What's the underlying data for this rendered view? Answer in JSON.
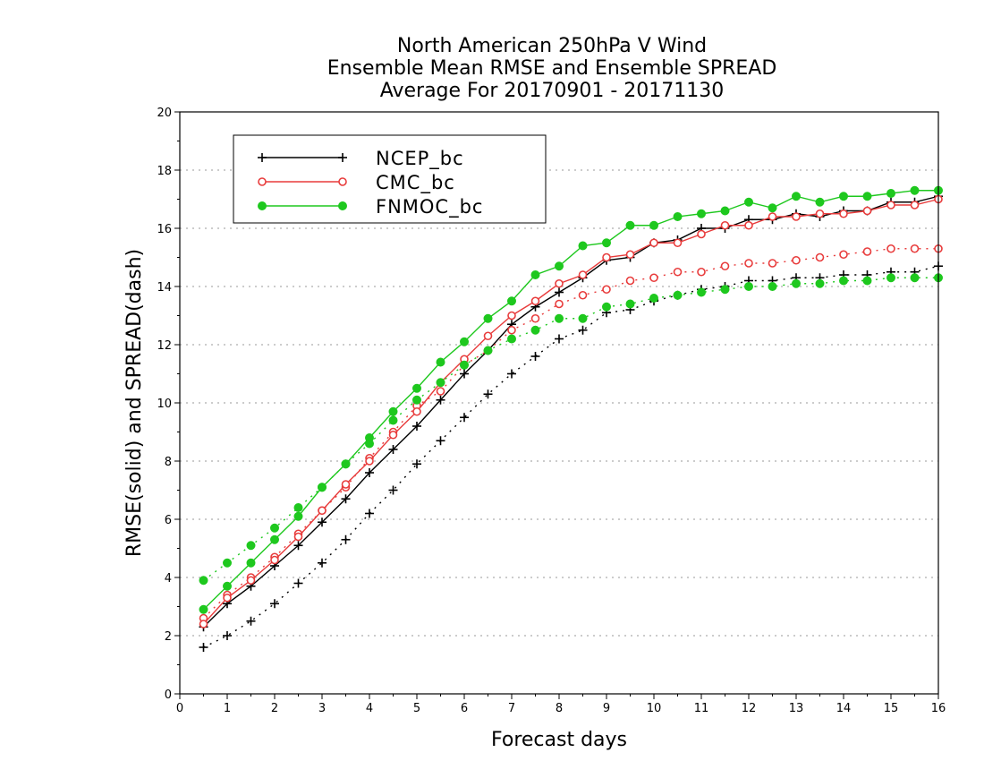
{
  "chart_data": {
    "type": "line",
    "title": [
      "North American 250hPa V Wind",
      "Ensemble Mean RMSE and Ensemble SPREAD",
      "Average For 20170901 - 20171130"
    ],
    "xlabel": "Forecast days",
    "ylabel": "RMSE(solid) and SPREAD(dash)",
    "xlim": [
      0,
      16
    ],
    "ylim": [
      0,
      20
    ],
    "xticks": [
      "0",
      "1",
      "2",
      "3",
      "4",
      "5",
      "6",
      "7",
      "8",
      "9",
      "10",
      "11",
      "12",
      "13",
      "14",
      "15",
      "16"
    ],
    "yticks": [
      "0",
      "2",
      "4",
      "6",
      "8",
      "10",
      "12",
      "14",
      "16",
      "18",
      "20"
    ],
    "grid": "horizontal dotted",
    "legend_position": "top-left",
    "x": [
      0.5,
      1,
      1.5,
      2,
      2.5,
      3,
      3.5,
      4,
      4.5,
      5,
      5.5,
      6,
      6.5,
      7,
      7.5,
      8,
      8.5,
      9,
      9.5,
      10,
      10.5,
      11,
      11.5,
      12,
      12.5,
      13,
      13.5,
      14,
      14.5,
      15,
      15.5,
      16
    ],
    "series": [
      {
        "name": "NCEP_bc",
        "color": "#000000",
        "marker": "plus",
        "rmse": [
          2.3,
          3.1,
          3.7,
          4.4,
          5.1,
          5.9,
          6.7,
          7.6,
          8.4,
          9.2,
          10.1,
          11.0,
          11.8,
          12.7,
          13.3,
          13.8,
          14.3,
          14.9,
          15.0,
          15.5,
          15.6,
          16.0,
          16.0,
          16.3,
          16.3,
          16.5,
          16.4,
          16.6,
          16.6,
          16.9,
          16.9,
          17.1
        ],
        "spread": [
          1.6,
          2.0,
          2.5,
          3.1,
          3.8,
          4.5,
          5.3,
          6.2,
          7.0,
          7.9,
          8.7,
          9.5,
          10.3,
          11.0,
          11.6,
          12.2,
          12.5,
          13.1,
          13.2,
          13.5,
          13.7,
          13.9,
          14.0,
          14.2,
          14.2,
          14.3,
          14.3,
          14.4,
          14.4,
          14.5,
          14.5,
          14.7
        ]
      },
      {
        "name": "CMC_bc",
        "color": "#e83c3c",
        "marker": "open-circle",
        "rmse": [
          2.4,
          3.3,
          3.9,
          4.6,
          5.4,
          6.3,
          7.2,
          8.0,
          8.9,
          9.7,
          10.7,
          11.5,
          12.3,
          13.0,
          13.5,
          14.1,
          14.4,
          15.0,
          15.1,
          15.5,
          15.5,
          15.8,
          16.1,
          16.1,
          16.4,
          16.4,
          16.5,
          16.5,
          16.6,
          16.8,
          16.8,
          17.0
        ],
        "spread": [
          2.6,
          3.4,
          4.0,
          4.7,
          5.5,
          6.3,
          7.1,
          8.1,
          9.0,
          9.9,
          10.4,
          11.3,
          11.8,
          12.5,
          12.9,
          13.4,
          13.7,
          13.9,
          14.2,
          14.3,
          14.5,
          14.5,
          14.7,
          14.8,
          14.8,
          14.9,
          15.0,
          15.1,
          15.2,
          15.3,
          15.3,
          15.3
        ]
      },
      {
        "name": "FNMOC_bc",
        "color": "#1ec81e",
        "marker": "filled-circle",
        "rmse": [
          2.9,
          3.7,
          4.5,
          5.3,
          6.1,
          7.1,
          7.9,
          8.8,
          9.7,
          10.5,
          11.4,
          12.1,
          12.9,
          13.5,
          14.4,
          14.7,
          15.4,
          15.5,
          16.1,
          16.1,
          16.4,
          16.5,
          16.6,
          16.9,
          16.7,
          17.1,
          16.9,
          17.1,
          17.1,
          17.2,
          17.3,
          17.3
        ],
        "spread": [
          3.9,
          4.5,
          5.1,
          5.7,
          6.4,
          7.1,
          7.9,
          8.6,
          9.4,
          10.1,
          10.7,
          11.3,
          11.8,
          12.2,
          12.5,
          12.9,
          12.9,
          13.3,
          13.4,
          13.6,
          13.7,
          13.8,
          13.9,
          14.0,
          14.0,
          14.1,
          14.1,
          14.2,
          14.2,
          14.3,
          14.3,
          14.3
        ]
      }
    ]
  }
}
